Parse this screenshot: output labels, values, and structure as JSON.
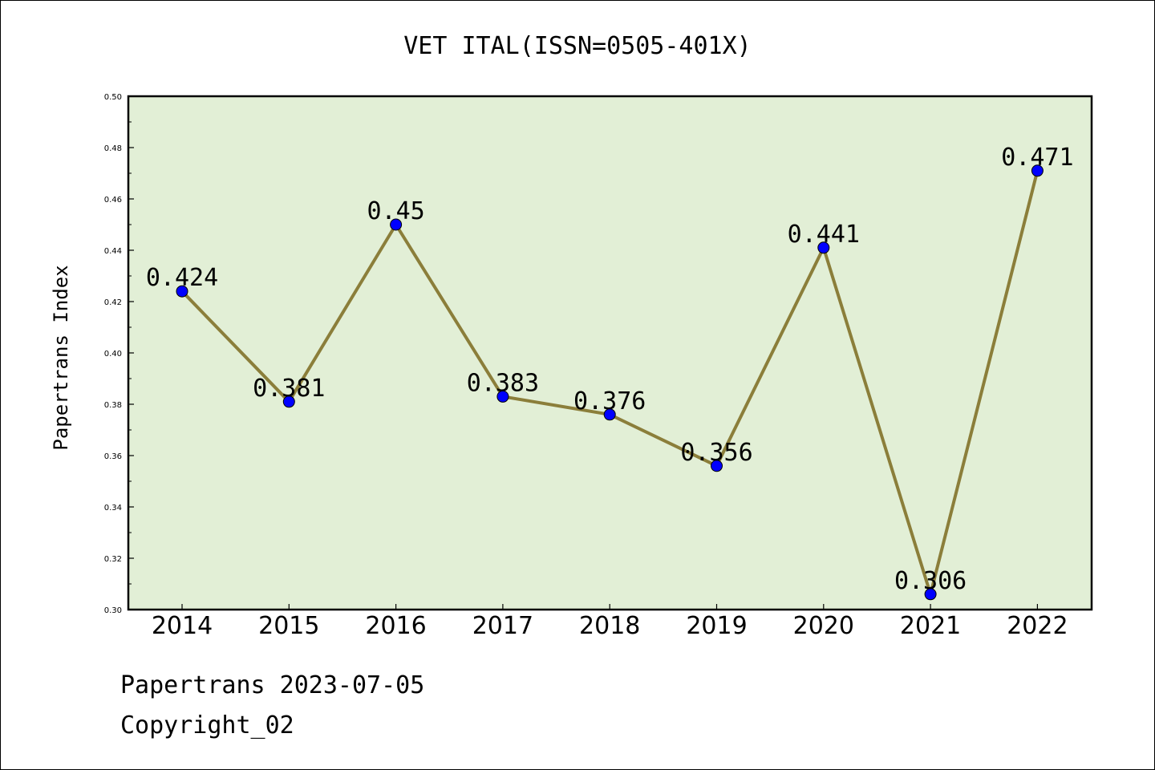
{
  "chart_data": {
    "type": "line",
    "title": "VET ITAL(ISSN=0505-401X)",
    "xlabel": "",
    "ylabel": "Papertrans Index",
    "categories": [
      "2014",
      "2015",
      "2016",
      "2017",
      "2018",
      "2019",
      "2020",
      "2021",
      "2022"
    ],
    "values": [
      0.424,
      0.381,
      0.45,
      0.383,
      0.376,
      0.356,
      0.441,
      0.306,
      0.471
    ],
    "data_labels": [
      "0.424",
      "0.381",
      "0.45",
      "0.383",
      "0.376",
      "0.356",
      "0.441",
      "0.306",
      "0.471"
    ],
    "ylim": [
      0.3,
      0.5
    ],
    "yticks": [
      "0.30",
      "0.32",
      "0.34",
      "0.36",
      "0.38",
      "0.40",
      "0.42",
      "0.44",
      "0.46",
      "0.48",
      "0.50"
    ],
    "grid": false,
    "colors": {
      "plot_background": "#e2efd6",
      "line": "#8b7e3a",
      "marker": "#0000ff"
    }
  },
  "footer": {
    "line1": "Papertrans 2023-07-05",
    "line2": "Copyright_02"
  }
}
